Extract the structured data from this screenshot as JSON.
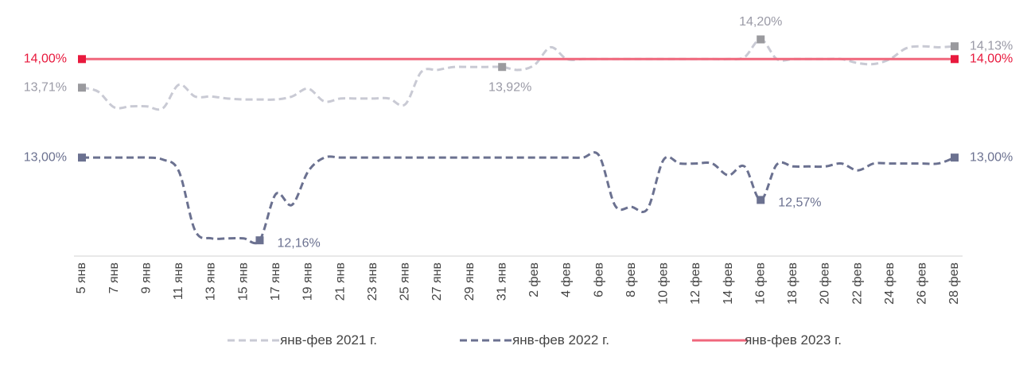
{
  "chart_data": {
    "type": "line",
    "categories": [
      "5 янв",
      null,
      "7 янв",
      null,
      "9 янв",
      null,
      "11 янв",
      null,
      "13 янв",
      null,
      "15 янв",
      null,
      "17 янв",
      null,
      "19 янв",
      null,
      "21 янв",
      null,
      "23 янв",
      null,
      "25 янв",
      null,
      "27 янв",
      null,
      "29 янв",
      null,
      "31 янв",
      null,
      "2 фев",
      null,
      "4 фев",
      null,
      "6 фев",
      null,
      "8 фев",
      null,
      "10 фев",
      null,
      "12 фев",
      null,
      "14 фев",
      null,
      "16 фев",
      null,
      "18 фев",
      null,
      "20 фев",
      null,
      "22 фев",
      null,
      "24 фев",
      null,
      "26 фев",
      null,
      "28 фев"
    ],
    "ylim": [
      12,
      14.6
    ],
    "legend": "bottom",
    "series": [
      {
        "name": "янв-фев 2021 г.",
        "color": "#c9cad4",
        "marker_color": "#9a9a9e",
        "dash": true,
        "values": [
          13.71,
          13.67,
          13.51,
          13.52,
          13.52,
          13.5,
          13.74,
          13.62,
          13.62,
          13.6,
          13.59,
          13.59,
          13.59,
          13.62,
          13.7,
          13.57,
          13.6,
          13.6,
          13.6,
          13.6,
          13.54,
          13.87,
          13.89,
          13.92,
          13.92,
          13.92,
          13.92,
          13.89,
          13.94,
          14.12,
          14.0,
          14.0,
          14.0,
          14.0,
          14.0,
          14.0,
          14.0,
          14.0,
          14.0,
          14.0,
          14.0,
          14.02,
          14.2,
          14.0,
          14.0,
          14.0,
          14.0,
          14.0,
          13.96,
          13.95,
          14.0,
          14.11,
          14.13,
          14.12,
          14.13
        ],
        "value_labels": [
          "13,71%",
          null,
          null,
          null,
          null,
          null,
          null,
          null,
          null,
          null,
          null,
          null,
          null,
          null,
          null,
          null,
          null,
          null,
          null,
          null,
          null,
          null,
          null,
          null,
          null,
          null,
          "13,92%",
          null,
          null,
          null,
          null,
          null,
          null,
          null,
          null,
          null,
          null,
          null,
          null,
          null,
          null,
          null,
          "14,20%",
          null,
          null,
          null,
          null,
          null,
          null,
          null,
          null,
          null,
          null,
          null,
          "14,13%"
        ]
      },
      {
        "name": "янв-фев 2022 г.",
        "color": "#6b7190",
        "marker_color": "#6b7190",
        "dash": true,
        "values": [
          13.0,
          13.0,
          13.0,
          13.0,
          13.0,
          12.98,
          12.86,
          12.26,
          12.18,
          12.18,
          12.18,
          12.16,
          12.63,
          12.52,
          12.86,
          13.0,
          13.0,
          13.0,
          13.0,
          13.0,
          13.0,
          13.0,
          13.0,
          13.0,
          13.0,
          13.0,
          13.0,
          13.0,
          13.0,
          13.0,
          13.0,
          13.0,
          13.02,
          12.51,
          12.5,
          12.48,
          12.98,
          12.94,
          12.94,
          12.94,
          12.82,
          12.91,
          12.57,
          12.93,
          12.91,
          12.91,
          12.91,
          12.94,
          12.87,
          12.94,
          12.94,
          12.94,
          12.94,
          12.94,
          13.0
        ],
        "value_labels": [
          "13,00%",
          null,
          null,
          null,
          null,
          null,
          null,
          null,
          null,
          null,
          null,
          "12,16%",
          null,
          null,
          null,
          null,
          null,
          null,
          null,
          null,
          null,
          null,
          null,
          null,
          null,
          null,
          null,
          null,
          null,
          null,
          null,
          null,
          null,
          null,
          null,
          null,
          null,
          null,
          null,
          null,
          null,
          null,
          "12,57%",
          null,
          null,
          null,
          null,
          null,
          null,
          null,
          null,
          null,
          null,
          null,
          "13,00%"
        ]
      },
      {
        "name": "янв-фев 2023 г.",
        "color": "#f0677c",
        "marker_color": "#e8193d",
        "label_color": "#e8193d",
        "dash": false,
        "values": [
          14.0,
          14.0,
          14.0,
          14.0,
          14.0,
          14.0,
          14.0,
          14.0,
          14.0,
          14.0,
          14.0,
          14.0,
          14.0,
          14.0,
          14.0,
          14.0,
          14.0,
          14.0,
          14.0,
          14.0,
          14.0,
          14.0,
          14.0,
          14.0,
          14.0,
          14.0,
          14.0,
          14.0,
          14.0,
          14.0,
          14.0,
          14.0,
          14.0,
          14.0,
          14.0,
          14.0,
          14.0,
          14.0,
          14.0,
          14.0,
          14.0,
          14.0,
          14.0,
          14.0,
          14.0,
          14.0,
          14.0,
          14.0,
          14.0,
          14.0,
          14.0,
          14.0,
          14.0,
          14.0,
          14.0
        ],
        "value_labels": [
          "14,00%",
          null,
          null,
          null,
          null,
          null,
          null,
          null,
          null,
          null,
          null,
          null,
          null,
          null,
          null,
          null,
          null,
          null,
          null,
          null,
          null,
          null,
          null,
          null,
          null,
          null,
          null,
          null,
          null,
          null,
          null,
          null,
          null,
          null,
          null,
          null,
          null,
          null,
          null,
          null,
          null,
          null,
          null,
          null,
          null,
          null,
          null,
          null,
          null,
          null,
          null,
          null,
          null,
          null,
          "14,00%"
        ]
      }
    ]
  }
}
